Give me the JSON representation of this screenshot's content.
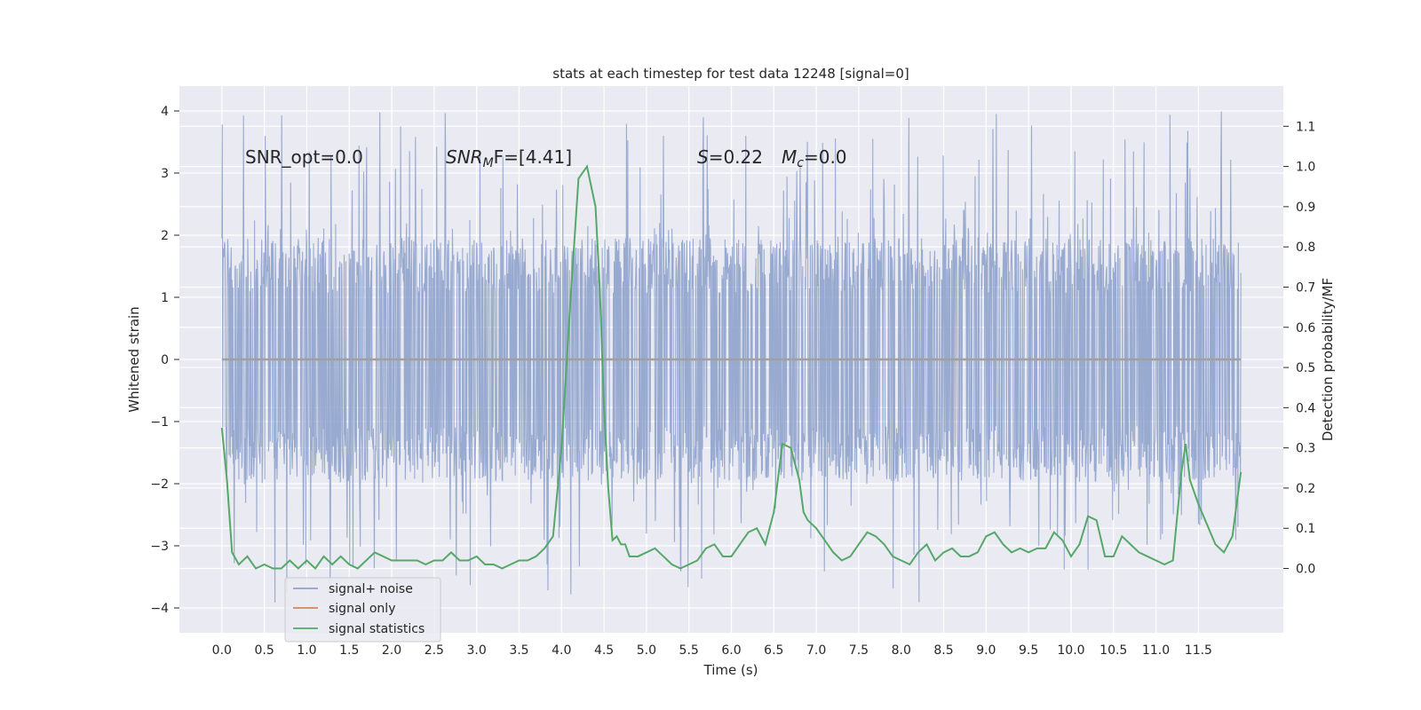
{
  "chart_data": {
    "type": "line",
    "title": "stats at each timestep for test data 12248 [signal=0]",
    "xlabel": "Time (s)",
    "ylabel": "Whitened strain",
    "y2label": "Detection probability/MF",
    "xlim": [
      -0.5,
      12.5
    ],
    "ylim": [
      -4.4,
      4.4
    ],
    "y2lim": [
      -0.16,
      1.2
    ],
    "x_ticks": [
      0.0,
      0.5,
      1.0,
      1.5,
      2.0,
      2.5,
      3.0,
      3.5,
      4.0,
      4.5,
      5.0,
      5.5,
      6.0,
      6.5,
      7.0,
      7.5,
      8.0,
      8.5,
      9.0,
      9.5,
      10.0,
      10.5,
      11.0,
      11.5
    ],
    "x_tick_labels": [
      "0.0",
      "0.5",
      "1.0",
      "1.5",
      "2.0",
      "2.5",
      "3.0",
      "3.5",
      "4.0",
      "4.5",
      "5.0",
      "5.5",
      "6.0",
      "6.5",
      "7.0",
      "7.5",
      "8.0",
      "8.5",
      "9.0",
      "9.5",
      "10.0",
      "10.5",
      "11.0",
      "11.5"
    ],
    "y_ticks": [
      -4,
      -3,
      -2,
      -1,
      0,
      1,
      2,
      3,
      4
    ],
    "y_tick_labels": [
      "−4",
      "−3",
      "−2",
      "−1",
      "0",
      "1",
      "2",
      "3",
      "4"
    ],
    "y2_ticks": [
      0.0,
      0.1,
      0.2,
      0.3,
      0.4,
      0.5,
      0.6,
      0.7,
      0.8,
      0.9,
      1.0,
      1.1
    ],
    "y2_tick_labels": [
      "0.0",
      "0.1",
      "0.2",
      "0.3",
      "0.4",
      "0.5",
      "0.6",
      "0.7",
      "0.8",
      "0.9",
      "1.0",
      "1.1"
    ],
    "grid": true,
    "legend_position": "lower-left",
    "annotations": {
      "snr_opt": "SNR_opt=0.0",
      "snr_mf_main": "SNR",
      "snr_mf_sub": "M",
      "snr_mf_rest": "F=[4.41]",
      "s_main": "S",
      "s_rest": "=0.22",
      "mc_main": "M",
      "mc_sub": "c",
      "mc_rest": "=0.0"
    },
    "series": [
      {
        "name": "signal+ noise",
        "color": "#8fa3cc",
        "axis": "left",
        "x_range": [
          0.0,
          12.0
        ],
        "typical_range": [
          -1.95,
          1.95
        ],
        "extreme_range": [
          -3.95,
          4.1
        ]
      },
      {
        "name": "signal only",
        "color": "#dd8452",
        "axis": "left",
        "x": [
          0.0,
          12.0
        ],
        "y": [
          0.0,
          0.0
        ]
      },
      {
        "name": "signal statistics",
        "color": "#55a868",
        "axis": "right",
        "x": [
          0.0,
          0.06,
          0.12,
          0.2,
          0.3,
          0.4,
          0.5,
          0.6,
          0.7,
          0.8,
          0.9,
          1.0,
          1.1,
          1.2,
          1.3,
          1.4,
          1.5,
          1.6,
          1.7,
          1.8,
          1.9,
          2.0,
          2.1,
          2.2,
          2.3,
          2.4,
          2.5,
          2.6,
          2.7,
          2.8,
          2.9,
          3.0,
          3.1,
          3.2,
          3.3,
          3.4,
          3.5,
          3.6,
          3.7,
          3.8,
          3.9,
          4.0,
          4.1,
          4.2,
          4.3,
          4.4,
          4.45,
          4.5,
          4.55,
          4.6,
          4.65,
          4.7,
          4.75,
          4.8,
          4.9,
          5.0,
          5.1,
          5.2,
          5.3,
          5.4,
          5.5,
          5.6,
          5.7,
          5.8,
          5.9,
          6.0,
          6.1,
          6.2,
          6.3,
          6.4,
          6.5,
          6.6,
          6.7,
          6.8,
          6.85,
          6.9,
          7.0,
          7.1,
          7.2,
          7.3,
          7.4,
          7.5,
          7.6,
          7.7,
          7.8,
          7.9,
          8.0,
          8.1,
          8.2,
          8.3,
          8.4,
          8.5,
          8.6,
          8.7,
          8.8,
          8.9,
          9.0,
          9.1,
          9.2,
          9.3,
          9.4,
          9.5,
          9.6,
          9.7,
          9.8,
          9.9,
          10.0,
          10.1,
          10.2,
          10.3,
          10.4,
          10.5,
          10.6,
          10.7,
          10.8,
          10.9,
          11.0,
          11.1,
          11.2,
          11.3,
          11.35,
          11.4,
          11.5,
          11.6,
          11.7,
          11.8,
          11.9,
          12.0
        ],
        "y": [
          0.35,
          0.22,
          0.04,
          0.01,
          0.03,
          0.0,
          0.01,
          0.0,
          0.0,
          0.02,
          0.0,
          0.02,
          0.0,
          0.03,
          0.01,
          0.03,
          0.01,
          0.0,
          0.02,
          0.04,
          0.03,
          0.02,
          0.02,
          0.02,
          0.02,
          0.01,
          0.02,
          0.02,
          0.04,
          0.02,
          0.02,
          0.03,
          0.01,
          0.01,
          0.0,
          0.01,
          0.02,
          0.02,
          0.03,
          0.05,
          0.08,
          0.3,
          0.65,
          0.97,
          1.0,
          0.9,
          0.7,
          0.4,
          0.2,
          0.07,
          0.08,
          0.06,
          0.06,
          0.03,
          0.03,
          0.04,
          0.05,
          0.03,
          0.01,
          0.0,
          0.01,
          0.02,
          0.05,
          0.06,
          0.03,
          0.03,
          0.06,
          0.09,
          0.1,
          0.06,
          0.14,
          0.31,
          0.3,
          0.22,
          0.14,
          0.12,
          0.1,
          0.07,
          0.04,
          0.02,
          0.03,
          0.06,
          0.09,
          0.08,
          0.06,
          0.03,
          0.02,
          0.01,
          0.04,
          0.06,
          0.02,
          0.04,
          0.05,
          0.03,
          0.03,
          0.04,
          0.08,
          0.09,
          0.06,
          0.04,
          0.05,
          0.04,
          0.05,
          0.05,
          0.09,
          0.07,
          0.03,
          0.06,
          0.13,
          0.12,
          0.03,
          0.03,
          0.08,
          0.06,
          0.04,
          0.03,
          0.02,
          0.01,
          0.02,
          0.24,
          0.31,
          0.22,
          0.16,
          0.11,
          0.06,
          0.04,
          0.08,
          0.24
        ]
      }
    ]
  }
}
